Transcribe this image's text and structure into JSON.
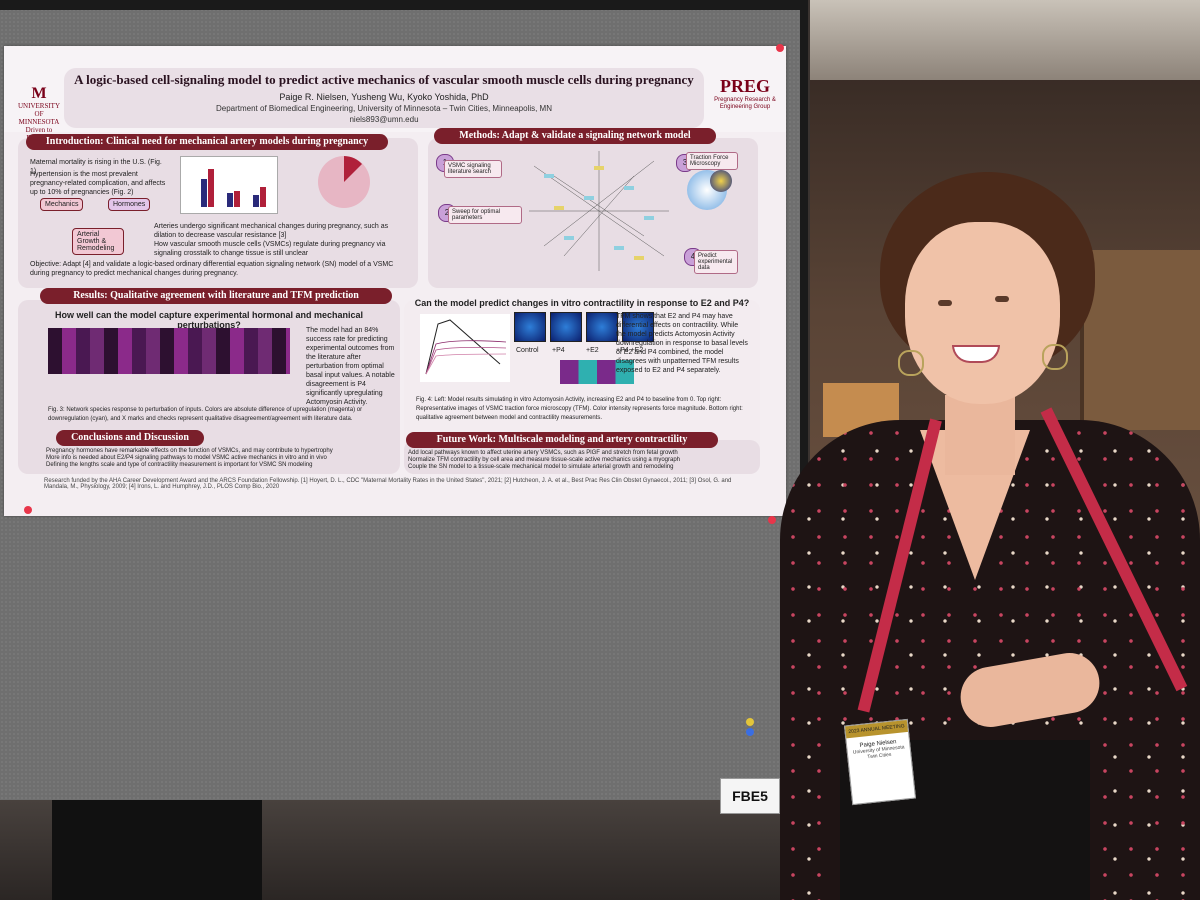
{
  "poster": {
    "title": "A logic-based cell-signaling model to predict active mechanics of vascular smooth muscle cells during pregnancy",
    "authors": "Paige R. Nielsen, Yusheng Wu, Kyoko Yoshida, PhD",
    "department": "Department of Biomedical Engineering, University of Minnesota – Twin Cities, Minneapolis, MN",
    "email": "niels893@umn.edu",
    "umn_logo": {
      "line1": "UNIVERSITY",
      "line2": "OF MINNESOTA",
      "tagline": "Driven to Discover"
    },
    "preg_logo": {
      "mark": "PREG",
      "sub": "Pregnancy Research & Engineering Group"
    },
    "sections": {
      "intro": {
        "heading": "Introduction: Clinical need for mechanical artery models during pregnancy",
        "bullet1": "Maternal mortality is rising in the U.S. (Fig. 1)",
        "bullet2": "Hypertension is the most prevalent pregnancy-related complication, and affects up to 10% of pregnancies (Fig. 2)",
        "box_mechanics": "Mechanics",
        "box_hormones": "Hormones",
        "box_growth": "Arterial Growth & Remodeling",
        "arteries": "Arteries undergo significant mechanical changes during pregnancy, such as dilation to decrease vascular resistance [3]",
        "vsmc": "How vascular smooth muscle cells (VSMCs) regulate during pregnancy via signaling crosstalk to change tissue is still unclear",
        "objective": "Objective: Adapt [4] and validate a logic-based ordinary differential equation signaling network (SN) model of a VSMC during pregnancy to predict mechanical changes during pregnancy."
      },
      "methods": {
        "heading": "Methods: Adapt & validate a signaling network model",
        "step1": "VSMC signaling literature search",
        "step2": "Sweep for optimal parameters",
        "step3": "Traction Force Microscopy",
        "step4": "Predict experimental data"
      },
      "results": {
        "heading": "Results: Qualitative agreement with literature and TFM prediction",
        "question1": "How well can the model capture experimental hormonal and mechanical perturbations?",
        "finding": "The model had an 84% success rate for predicting experimental outcomes from the literature after perturbation from optimal basal input values. A notable disagreement is P4 significantly upregulating Actomyosin Activity.",
        "fig3_caption": "Fig. 3: Network species response to perturbation of inputs. Colors are absolute difference of upregulation (magenta) or downregulation (cyan), and X marks and checks represent qualitative disagreement/agreement with literature data.",
        "question2": "Can the model predict changes in vitro contractility in response to E2 and P4?",
        "tfm_text": "TFM shows that E2 and P4 may have differential effects on contractility. While the model predicts Actomyosin Activity downregulation in response to basal levels of E2 and P4 combined, the model disagrees with unpatterned TFM results exposed to E2 and P4 separately.",
        "tile_labels": [
          "Control",
          "+P4",
          "+E2",
          "+P4 +E2"
        ],
        "fig4_caption": "Fig. 4: Left: Model results simulating in vitro Actomyosin Activity, increasing E2 and P4 to baseline from 0. Top right: Representative images of VSMC traction force microscopy (TFM). Color intensity represents force magnitude. Bottom right: qualitative agreement between model and contractility measurements."
      },
      "conclusions": {
        "heading": "Conclusions and Discussion",
        "items": [
          "Pregnancy hormones have remarkable effects on the function of VSMCs, and may contribute to hypertrophy",
          "More info is needed about E2/P4 signaling pathways to model VSMC active mechanics in vitro and in vivo",
          "Defining the lengths scale and type of contractility measurement is important for VSMC SN modeling"
        ]
      },
      "future": {
        "heading": "Future Work: Multiscale modeling and artery contractility",
        "items": [
          "Add local pathways known to affect uterine artery VSMCs, such as PlGF and stretch from fetal growth",
          "Normalize TFM contractility by cell area and measure tissue-scale active mechanics using a myograph",
          "Couple the SN model to a tissue-scale mechanical model to simulate arterial growth and remodeling"
        ]
      }
    },
    "footer": "Research funded by the AHA Career Development Award and the ARCS Foundation Fellowship. [1] Hoyert, D. L., CDC \"Maternal Mortality Rates in the United States\", 2021; [2] Hutcheon, J. A. et al., Best Prac Res Clin Obstet Gynaecol., 2011; [3] Osol, G. and Mandala, M., Physiology, 2009; [4] Irons, L. and Humphrey, J.D., PLOS Comp Bio., 2020"
  },
  "board_tag": "FBE5",
  "badge": {
    "header": "2023 ANNUAL MEETING",
    "name": "Paige Nielsen",
    "affiliation": "University of Minnesota Twin Cities"
  }
}
